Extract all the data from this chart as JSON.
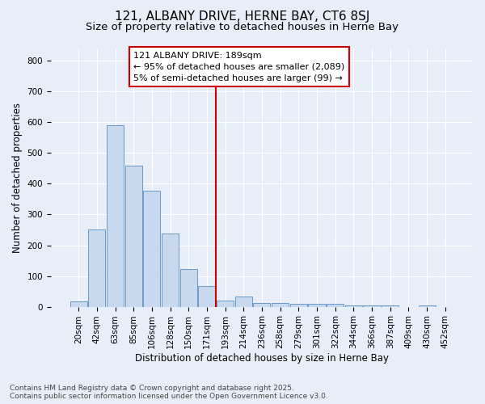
{
  "title1": "121, ALBANY DRIVE, HERNE BAY, CT6 8SJ",
  "title2": "Size of property relative to detached houses in Herne Bay",
  "xlabel": "Distribution of detached houses by size in Herne Bay",
  "ylabel": "Number of detached properties",
  "categories": [
    "20sqm",
    "42sqm",
    "63sqm",
    "85sqm",
    "106sqm",
    "128sqm",
    "150sqm",
    "171sqm",
    "193sqm",
    "214sqm",
    "236sqm",
    "258sqm",
    "279sqm",
    "301sqm",
    "322sqm",
    "344sqm",
    "366sqm",
    "387sqm",
    "409sqm",
    "430sqm",
    "452sqm"
  ],
  "values": [
    17,
    250,
    590,
    458,
    378,
    237,
    122,
    68,
    20,
    32,
    12,
    12,
    10,
    10,
    10,
    3,
    4,
    3,
    0,
    3,
    0
  ],
  "bar_color": "#c8d8ee",
  "bar_edge_color": "#5a8fc0",
  "vline_index": 8,
  "vline_color": "#cc0000",
  "annotation_line1": "121 ALBANY DRIVE: 189sqm",
  "annotation_line2": "← 95% of detached houses are smaller (2,089)",
  "annotation_line3": "5% of semi-detached houses are larger (99) →",
  "annotation_box_color": "#ffffff",
  "annotation_box_edge": "#cc0000",
  "footnote1": "Contains HM Land Registry data © Crown copyright and database right 2025.",
  "footnote2": "Contains public sector information licensed under the Open Government Licence v3.0.",
  "bg_color": "#e8eef8",
  "plot_bg_color": "#e8eef8",
  "ylim": [
    0,
    840
  ],
  "yticks": [
    0,
    100,
    200,
    300,
    400,
    500,
    600,
    700,
    800
  ],
  "grid_color": "#ffffff",
  "title1_fontsize": 11,
  "title2_fontsize": 9.5,
  "tick_fontsize": 7.5,
  "label_fontsize": 8.5,
  "annotation_fontsize": 8,
  "footnote_fontsize": 6.5
}
